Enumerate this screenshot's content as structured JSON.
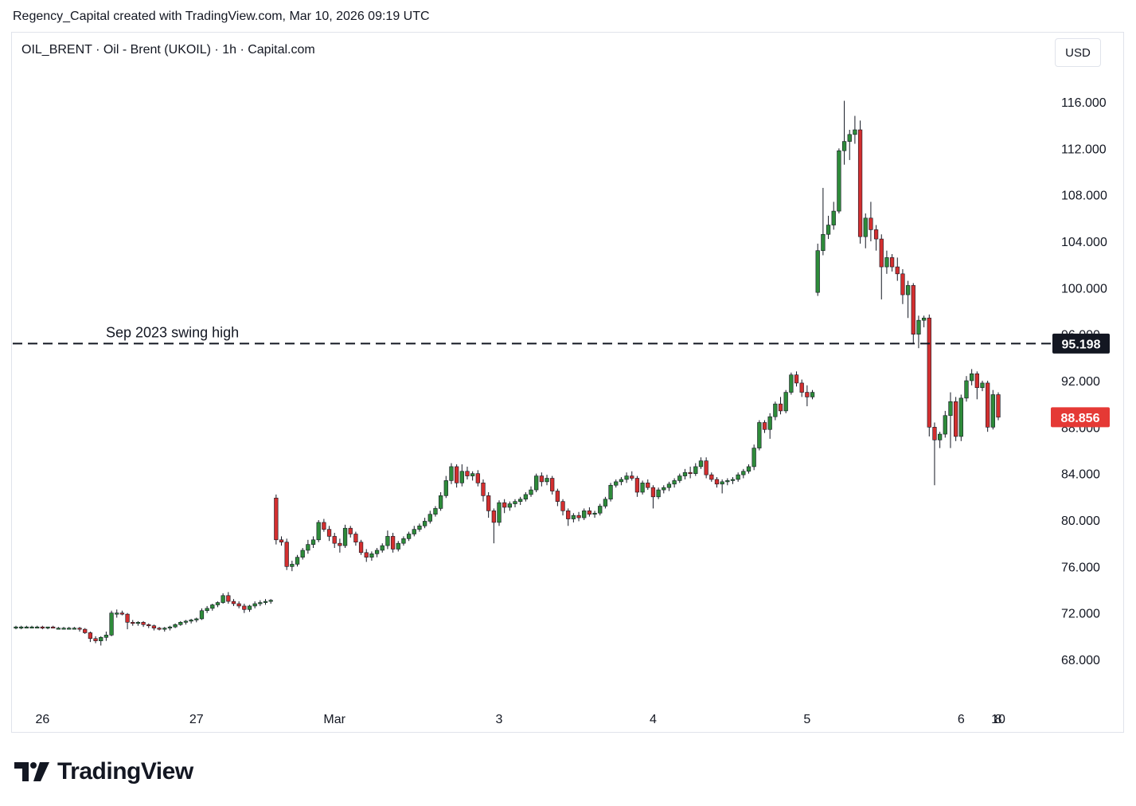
{
  "header": {
    "attribution": "Regency_Capital created with TradingView.com, Mar 10, 2026 09:19 UTC"
  },
  "toolbar": {
    "symbol_title": "OIL_BRENT · Oil - Brent (UKOIL) · 1h · Capital.com",
    "currency": "USD"
  },
  "footer": {
    "brand": "TradingView"
  },
  "colors": {
    "up": "#26a69a",
    "up_body": "#2e8b3a",
    "down": "#d32f2f",
    "wick": "#131722",
    "level_label_bg": "#131722",
    "last_price_bg": "#e53935"
  },
  "chart_data": {
    "type": "candlestick",
    "title": "OIL_BRENT · Oil - Brent (UKOIL) · 1h · Capital.com",
    "xlabel": "",
    "ylabel": "",
    "ylim": [
      64,
      118
    ],
    "y_ticks": [
      "116.000",
      "112.000",
      "108.000",
      "104.000",
      "100.000",
      "96.000",
      "92.000",
      "88.000",
      "84.000",
      "80.000",
      "76.000",
      "72.000",
      "68.000"
    ],
    "x_ticks": [
      "26",
      "27",
      "Mar",
      "3",
      "4",
      "5",
      "6",
      "8",
      "10"
    ],
    "annotation": {
      "label": "Sep 2023 swing high",
      "value": 95.198,
      "value_label": "95.198",
      "style": "dashed"
    },
    "last_price": {
      "value": 88.856,
      "label": "88.856"
    },
    "candles_ohlc": [
      [
        70.8,
        70.9,
        70.6,
        70.8
      ],
      [
        70.8,
        70.9,
        70.6,
        70.8
      ],
      [
        70.8,
        70.9,
        70.7,
        70.8
      ],
      [
        70.8,
        70.9,
        70.7,
        70.8
      ],
      [
        70.8,
        70.9,
        70.7,
        70.8
      ],
      [
        70.8,
        70.9,
        70.6,
        70.7
      ],
      [
        70.7,
        70.8,
        70.6,
        70.8
      ],
      [
        70.8,
        70.9,
        70.7,
        70.7
      ],
      [
        70.7,
        70.8,
        70.6,
        70.7
      ],
      [
        70.7,
        70.8,
        70.6,
        70.7
      ],
      [
        70.7,
        70.8,
        70.6,
        70.7
      ],
      [
        70.7,
        70.8,
        70.6,
        70.7
      ],
      [
        70.7,
        70.8,
        70.4,
        70.6
      ],
      [
        70.6,
        70.7,
        70.2,
        70.3
      ],
      [
        70.3,
        70.4,
        69.5,
        69.8
      ],
      [
        69.8,
        70.0,
        69.4,
        69.6
      ],
      [
        69.6,
        70.0,
        69.2,
        69.9
      ],
      [
        69.9,
        70.4,
        69.6,
        70.1
      ],
      [
        70.1,
        72.2,
        70.0,
        72.0
      ],
      [
        72.0,
        72.3,
        71.6,
        72.0
      ],
      [
        72.0,
        72.2,
        71.8,
        71.9
      ],
      [
        71.9,
        72.0,
        70.6,
        71.2
      ],
      [
        71.2,
        71.4,
        70.9,
        71.1
      ],
      [
        71.1,
        71.3,
        70.9,
        71.2
      ],
      [
        71.2,
        71.3,
        70.8,
        71.0
      ],
      [
        71.0,
        71.1,
        70.7,
        70.9
      ],
      [
        70.9,
        71.0,
        70.5,
        70.7
      ],
      [
        70.7,
        70.8,
        70.5,
        70.6
      ],
      [
        70.6,
        70.8,
        70.4,
        70.7
      ],
      [
        70.7,
        70.9,
        70.5,
        70.8
      ],
      [
        70.8,
        71.1,
        70.7,
        71.0
      ],
      [
        71.0,
        71.3,
        70.9,
        71.2
      ],
      [
        71.2,
        71.4,
        71.0,
        71.3
      ],
      [
        71.3,
        71.5,
        71.1,
        71.4
      ],
      [
        71.4,
        71.6,
        71.2,
        71.5
      ],
      [
        71.5,
        72.4,
        71.4,
        72.2
      ],
      [
        72.2,
        72.6,
        72.0,
        72.4
      ],
      [
        72.4,
        72.8,
        72.2,
        72.7
      ],
      [
        72.7,
        73.0,
        72.5,
        72.9
      ],
      [
        72.9,
        73.7,
        72.8,
        73.5
      ],
      [
        73.5,
        73.8,
        72.8,
        73.0
      ],
      [
        73.0,
        73.2,
        72.6,
        72.8
      ],
      [
        72.8,
        73.0,
        72.4,
        72.6
      ],
      [
        72.6,
        72.8,
        72.0,
        72.3
      ],
      [
        72.3,
        72.7,
        72.1,
        72.6
      ],
      [
        72.6,
        73.0,
        72.4,
        72.8
      ],
      [
        72.8,
        73.1,
        72.6,
        72.9
      ],
      [
        72.9,
        73.2,
        72.7,
        73.0
      ],
      [
        73.0,
        73.2,
        72.8,
        73.1
      ],
      [
        81.9,
        82.2,
        77.9,
        78.3
      ],
      [
        78.3,
        78.6,
        77.8,
        78.1
      ],
      [
        78.1,
        78.4,
        75.7,
        76.0
      ],
      [
        76.0,
        76.5,
        75.6,
        76.2
      ],
      [
        76.2,
        77.0,
        76.0,
        76.8
      ],
      [
        76.8,
        77.6,
        76.6,
        77.4
      ],
      [
        77.4,
        78.3,
        77.1,
        77.9
      ],
      [
        77.9,
        78.6,
        77.6,
        78.3
      ],
      [
        78.3,
        80.0,
        78.1,
        79.8
      ],
      [
        79.8,
        80.1,
        79.0,
        79.2
      ],
      [
        79.2,
        79.5,
        78.2,
        78.6
      ],
      [
        78.6,
        78.9,
        77.6,
        78.0
      ],
      [
        78.0,
        78.4,
        77.2,
        77.8
      ],
      [
        77.8,
        79.6,
        77.6,
        79.3
      ],
      [
        79.3,
        79.5,
        78.5,
        78.8
      ],
      [
        78.8,
        79.0,
        77.8,
        78.1
      ],
      [
        78.1,
        78.3,
        77.0,
        77.2
      ],
      [
        77.2,
        77.5,
        76.4,
        76.8
      ],
      [
        76.8,
        77.3,
        76.5,
        77.1
      ],
      [
        77.1,
        77.6,
        76.8,
        77.4
      ],
      [
        77.4,
        78.0,
        77.2,
        77.8
      ],
      [
        77.8,
        79.1,
        77.5,
        78.6
      ],
      [
        78.6,
        78.9,
        77.2,
        77.5
      ],
      [
        77.5,
        78.2,
        77.3,
        78.0
      ],
      [
        78.0,
        78.6,
        77.8,
        78.4
      ],
      [
        78.4,
        79.0,
        78.2,
        78.8
      ],
      [
        78.8,
        79.5,
        78.6,
        79.2
      ],
      [
        79.2,
        79.7,
        79.0,
        79.5
      ],
      [
        79.5,
        80.2,
        79.3,
        79.9
      ],
      [
        79.9,
        80.8,
        79.7,
        80.5
      ],
      [
        80.5,
        81.2,
        80.3,
        81.0
      ],
      [
        81.0,
        82.4,
        80.8,
        82.1
      ],
      [
        82.1,
        83.8,
        81.9,
        83.4
      ],
      [
        83.4,
        84.9,
        83.1,
        84.6
      ],
      [
        84.6,
        84.8,
        82.8,
        83.2
      ],
      [
        83.2,
        84.8,
        82.9,
        84.2
      ],
      [
        84.2,
        84.6,
        83.5,
        83.8
      ],
      [
        83.8,
        84.2,
        83.4,
        84.0
      ],
      [
        84.0,
        84.3,
        82.9,
        83.2
      ],
      [
        83.2,
        83.5,
        81.6,
        82.1
      ],
      [
        82.1,
        82.4,
        80.2,
        80.8
      ],
      [
        80.8,
        81.0,
        78.0,
        79.8
      ],
      [
        79.8,
        81.7,
        79.5,
        81.5
      ],
      [
        81.5,
        81.8,
        80.6,
        81.1
      ],
      [
        81.1,
        81.6,
        80.8,
        81.4
      ],
      [
        81.4,
        81.8,
        81.1,
        81.6
      ],
      [
        81.6,
        82.0,
        81.3,
        81.8
      ],
      [
        81.8,
        82.4,
        81.6,
        82.2
      ],
      [
        82.2,
        82.9,
        82.0,
        82.6
      ],
      [
        82.6,
        84.0,
        82.4,
        83.8
      ],
      [
        83.8,
        84.1,
        82.9,
        83.3
      ],
      [
        83.3,
        83.9,
        83.0,
        83.6
      ],
      [
        83.6,
        83.8,
        82.2,
        82.5
      ],
      [
        82.5,
        82.7,
        81.2,
        81.6
      ],
      [
        81.6,
        81.8,
        80.4,
        80.8
      ],
      [
        80.8,
        81.0,
        79.5,
        80.1
      ],
      [
        80.1,
        80.6,
        79.8,
        80.4
      ],
      [
        80.4,
        80.7,
        79.9,
        80.2
      ],
      [
        80.2,
        81.0,
        80.0,
        80.8
      ],
      [
        80.8,
        81.1,
        80.3,
        80.5
      ],
      [
        80.5,
        80.8,
        80.2,
        80.6
      ],
      [
        80.6,
        81.4,
        80.4,
        81.2
      ],
      [
        81.2,
        82.0,
        81.0,
        81.8
      ],
      [
        81.8,
        83.2,
        81.6,
        83.0
      ],
      [
        83.0,
        83.5,
        82.8,
        83.3
      ],
      [
        83.3,
        83.7,
        83.0,
        83.5
      ],
      [
        83.5,
        84.1,
        83.2,
        83.8
      ],
      [
        83.8,
        84.2,
        83.4,
        83.6
      ],
      [
        83.6,
        83.8,
        82.0,
        82.4
      ],
      [
        82.4,
        83.4,
        82.2,
        83.2
      ],
      [
        83.2,
        83.5,
        82.6,
        82.8
      ],
      [
        82.8,
        83.0,
        81.0,
        82.0
      ],
      [
        82.0,
        82.8,
        81.8,
        82.6
      ],
      [
        82.6,
        83.0,
        82.3,
        82.8
      ],
      [
        82.8,
        83.3,
        82.5,
        83.1
      ],
      [
        83.1,
        83.6,
        82.8,
        83.4
      ],
      [
        83.4,
        84.0,
        83.2,
        83.8
      ],
      [
        83.8,
        84.4,
        83.5,
        84.1
      ],
      [
        84.1,
        84.6,
        83.6,
        84.0
      ],
      [
        84.0,
        84.9,
        83.8,
        84.6
      ],
      [
        84.6,
        85.4,
        84.4,
        85.1
      ],
      [
        85.1,
        85.4,
        83.6,
        83.9
      ],
      [
        83.9,
        84.1,
        83.3,
        83.5
      ],
      [
        83.5,
        83.7,
        82.8,
        83.1
      ],
      [
        83.1,
        83.5,
        82.3,
        83.3
      ],
      [
        83.3,
        83.6,
        83.0,
        83.4
      ],
      [
        83.4,
        83.7,
        83.1,
        83.5
      ],
      [
        83.5,
        84.1,
        83.3,
        83.9
      ],
      [
        83.9,
        84.4,
        83.6,
        84.2
      ],
      [
        84.2,
        84.8,
        84.0,
        84.6
      ],
      [
        84.6,
        86.5,
        84.3,
        86.2
      ],
      [
        86.2,
        88.6,
        86.0,
        88.4
      ],
      [
        88.4,
        88.6,
        87.5,
        87.8
      ],
      [
        87.8,
        89.2,
        87.0,
        88.9
      ],
      [
        88.9,
        90.2,
        88.6,
        90.0
      ],
      [
        90.0,
        90.6,
        89.1,
        89.4
      ],
      [
        89.4,
        91.2,
        89.2,
        91.0
      ],
      [
        91.0,
        92.7,
        90.8,
        92.5
      ],
      [
        92.5,
        92.8,
        91.5,
        91.8
      ],
      [
        91.8,
        92.1,
        90.6,
        91.0
      ],
      [
        91.0,
        91.6,
        89.8,
        90.6
      ],
      [
        90.6,
        91.2,
        90.4,
        91.0
      ],
      [
        99.6,
        103.8,
        99.3,
        103.2
      ],
      [
        103.2,
        108.6,
        102.8,
        104.6
      ],
      [
        104.6,
        106.2,
        104.2,
        105.4
      ],
      [
        105.4,
        107.4,
        105.0,
        106.6
      ],
      [
        106.6,
        112.0,
        106.4,
        111.8
      ],
      [
        111.8,
        116.1,
        110.6,
        112.6
      ],
      [
        112.6,
        113.6,
        111.0,
        113.2
      ],
      [
        113.2,
        114.8,
        112.4,
        113.6
      ],
      [
        113.6,
        114.4,
        103.8,
        104.4
      ],
      [
        104.4,
        106.4,
        103.4,
        106.0
      ],
      [
        106.0,
        107.4,
        104.0,
        105.0
      ],
      [
        105.0,
        105.4,
        103.2,
        104.2
      ],
      [
        104.2,
        104.6,
        99.0,
        101.8
      ],
      [
        101.8,
        103.2,
        101.2,
        102.6
      ],
      [
        102.6,
        102.9,
        101.4,
        101.8
      ],
      [
        101.8,
        102.6,
        100.6,
        101.2
      ],
      [
        101.2,
        101.6,
        98.6,
        99.4
      ],
      [
        99.4,
        100.6,
        97.4,
        100.2
      ],
      [
        100.2,
        100.4,
        95.2,
        96.0
      ],
      [
        96.0,
        97.6,
        94.8,
        97.2
      ],
      [
        97.2,
        97.6,
        96.6,
        97.4
      ],
      [
        97.4,
        97.7,
        87.2,
        88.0
      ],
      [
        88.0,
        88.4,
        83.0,
        86.9
      ],
      [
        86.9,
        87.6,
        86.2,
        87.4
      ],
      [
        87.4,
        89.4,
        87.1,
        89.0
      ],
      [
        89.0,
        91.0,
        86.2,
        90.2
      ],
      [
        90.2,
        90.6,
        86.8,
        87.2
      ],
      [
        87.2,
        90.8,
        86.8,
        90.5
      ],
      [
        90.5,
        92.4,
        90.2,
        92.0
      ],
      [
        92.0,
        93.0,
        91.6,
        92.6
      ],
      [
        92.6,
        92.8,
        90.4,
        91.4
      ],
      [
        91.4,
        92.0,
        91.1,
        91.8
      ],
      [
        91.8,
        92.0,
        87.6,
        88.0
      ],
      [
        88.0,
        91.2,
        87.8,
        90.8
      ],
      [
        90.8,
        91.0,
        88.6,
        88.856
      ]
    ]
  }
}
